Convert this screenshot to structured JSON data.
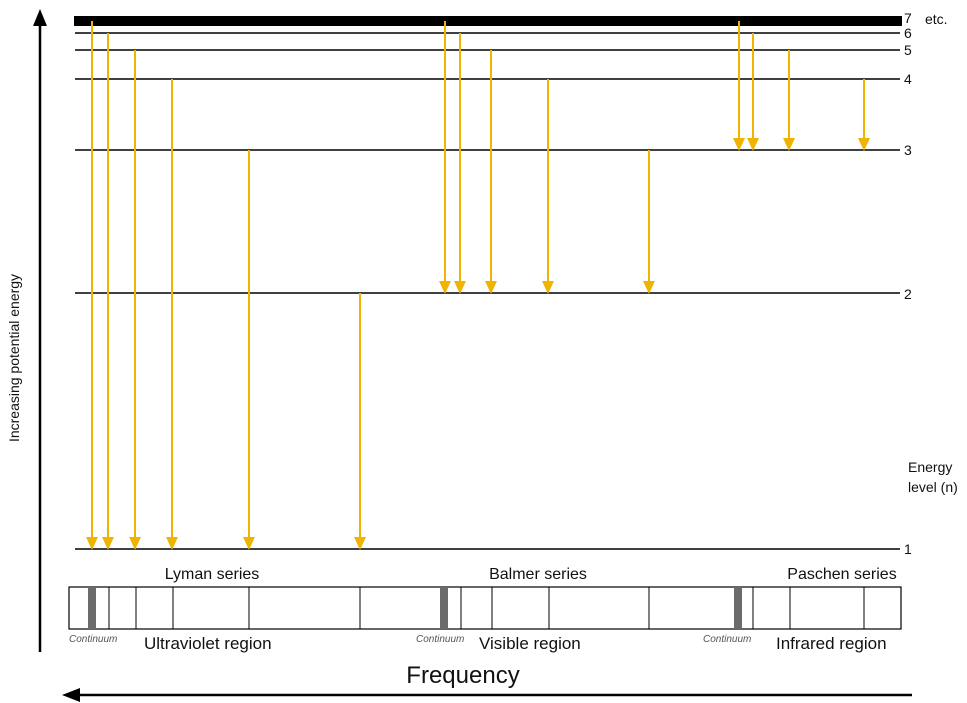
{
  "axis": {
    "y_label": "Increasing potential energy",
    "x_label": "Frequency"
  },
  "levels": [
    {
      "n": "1"
    },
    {
      "n": "2"
    },
    {
      "n": "3"
    },
    {
      "n": "4"
    },
    {
      "n": "5"
    },
    {
      "n": "6"
    },
    {
      "n": "7"
    }
  ],
  "level_suffix": "etc.",
  "energy_level_title": [
    "Energy",
    "level (n)"
  ],
  "series": [
    {
      "name": "Lyman series",
      "final_level": 1,
      "from_levels": [
        7,
        6,
        5,
        4,
        3,
        2
      ]
    },
    {
      "name": "Balmer series",
      "final_level": 2,
      "from_levels": [
        7,
        6,
        5,
        4,
        3
      ]
    },
    {
      "name": "Paschen series",
      "final_level": 3,
      "from_levels": [
        7,
        6,
        5,
        4
      ]
    }
  ],
  "spectrum": {
    "continuum_label": "Continuum",
    "regions": [
      "Ultraviolet region",
      "Visible region",
      "Infrared region"
    ]
  },
  "colors": {
    "transition": "#f0b400",
    "level_line": "#000000",
    "continuum": "#6b6b6b"
  }
}
